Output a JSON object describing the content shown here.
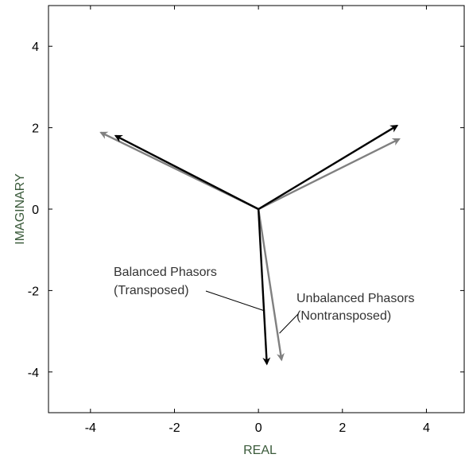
{
  "chart_data": {
    "type": "line",
    "title": "",
    "xlabel": "REAL",
    "ylabel": "IMAGINARY",
    "xlim": [
      -5,
      4.9
    ],
    "ylim": [
      -5,
      5
    ],
    "xticks": [
      "-4",
      "-2",
      "0",
      "2",
      "4"
    ],
    "xtick_values": [
      -4,
      -2,
      0,
      2,
      4
    ],
    "yticks": [
      "4",
      "2",
      "0",
      "-2",
      "-4"
    ],
    "ytick_values": [
      4,
      2,
      0,
      -2,
      -4
    ],
    "grid": false,
    "origin": [
      0,
      0
    ],
    "series": [
      {
        "name": "Balanced Phasors (Transposed)",
        "color": "#000000",
        "vectors": [
          {
            "x": 3.3,
            "y": 2.05
          },
          {
            "x": -3.4,
            "y": 1.8
          },
          {
            "x": 0.2,
            "y": -3.8
          }
        ]
      },
      {
        "name": "Unbalanced Phasors (Nontransposed)",
        "color": "#808080",
        "vectors": [
          {
            "x": 3.35,
            "y": 1.72
          },
          {
            "x": -3.75,
            "y": 1.88
          },
          {
            "x": 0.55,
            "y": -3.7
          }
        ]
      }
    ],
    "annotations": [
      {
        "id": "balanced",
        "lines": [
          "Balanced Phasors",
          "(Transposed)"
        ],
        "pointer_to": {
          "x": 0.15,
          "y": -2.5
        }
      },
      {
        "id": "unbalanced",
        "lines": [
          "Unbalanced Phasors",
          "(Nontransposed)"
        ],
        "pointer_to": {
          "x": 0.5,
          "y": -3.05
        }
      }
    ],
    "colors": {
      "axis": "#000000",
      "axis_label": "#3a5a3a",
      "annotation_text": "#333333",
      "balanced": "#000000",
      "unbalanced": "#808080"
    }
  }
}
